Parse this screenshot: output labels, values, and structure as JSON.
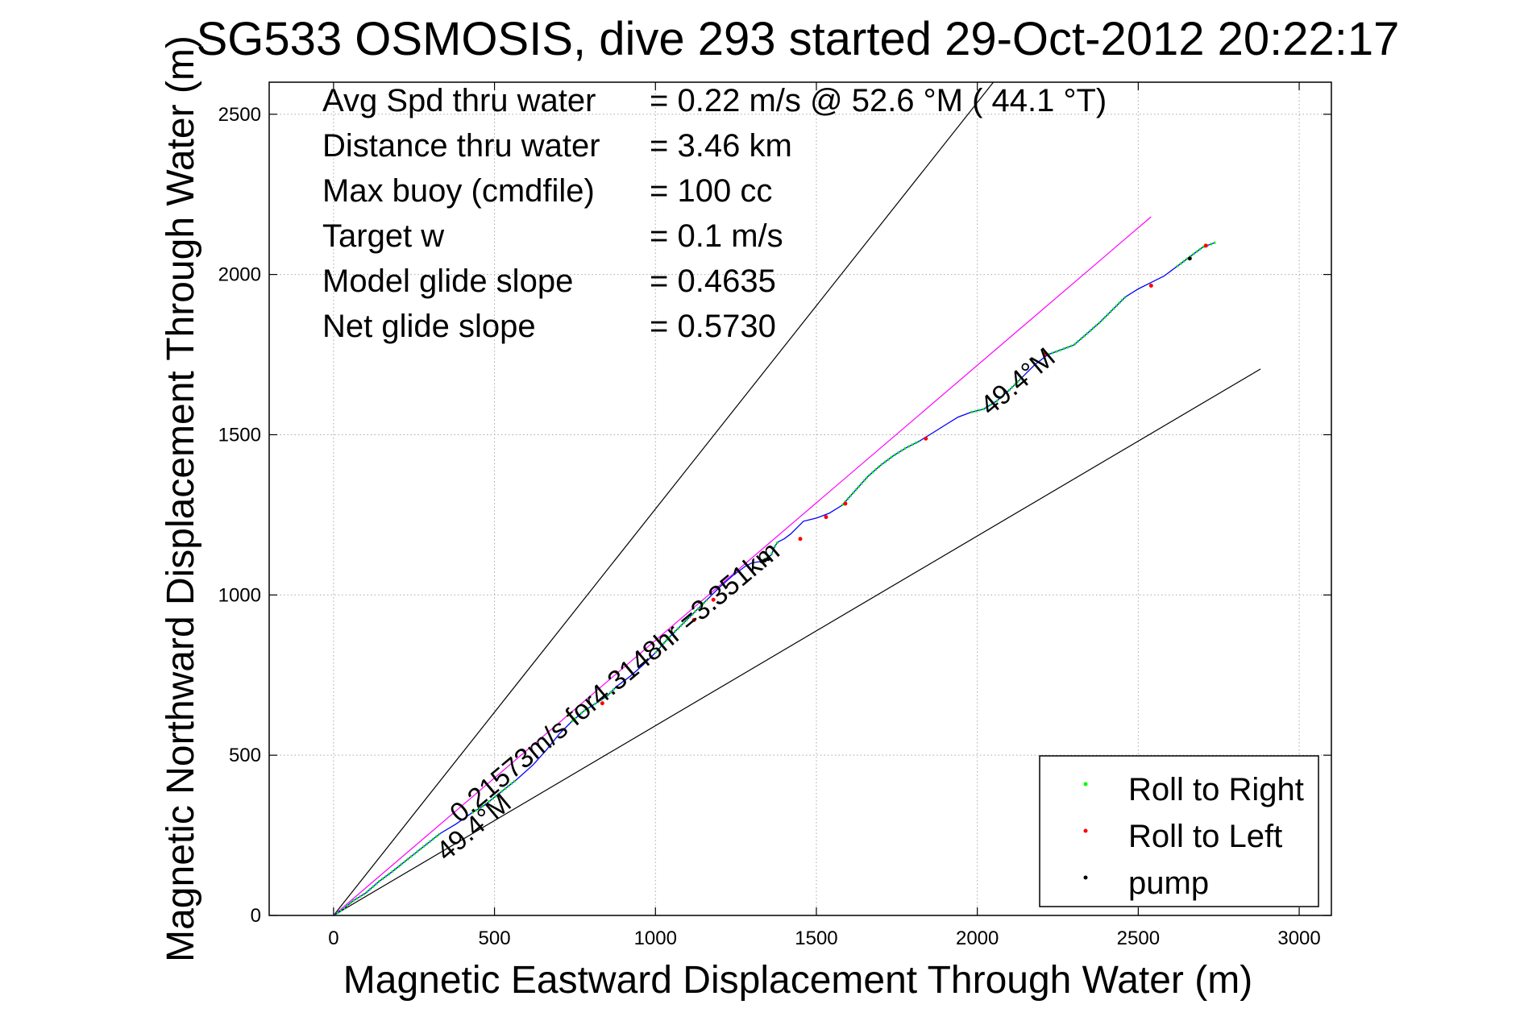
{
  "chart_data": {
    "type": "line",
    "title": "SG533 OSMOSIS, dive 293 started 29-Oct-2012 20:22:17",
    "xlabel": "Magnetic Eastward Displacement Through Water (m)",
    "ylabel": "Magnetic Northward Displacement Through Water (m)",
    "xlim": [
      -200,
      3100
    ],
    "ylim": [
      0,
      2600
    ],
    "xticks": [
      0,
      500,
      1000,
      1500,
      2000,
      2500,
      3000
    ],
    "yticks": [
      0,
      500,
      1000,
      1500,
      2000,
      2500
    ],
    "grid": true,
    "stats": [
      {
        "label": "Avg Spd thru water",
        "value": "=  0.22 m/s @  52.6 °M ( 44.1 °T)"
      },
      {
        "label": "Distance thru water",
        "value": "=  3.46 km"
      },
      {
        "label": "Max buoy (cmdfile)",
        "value": "= 100 cc"
      },
      {
        "label": "Target w",
        "value": "= 0.1 m/s"
      },
      {
        "label": "Model glide slope",
        "value": "= 0.4635"
      },
      {
        "label": "Net glide slope",
        "value": "= 0.5730"
      }
    ],
    "annotations": {
      "speed_line": "0.21573m/s for4.3148hr =3.351km",
      "heading_upper": "49.4°M",
      "heading_lower": "49.4°M"
    },
    "legend": {
      "position": "bottom-right",
      "entries": [
        {
          "name": "Roll to Right",
          "color": "#00ff00"
        },
        {
          "name": "Roll to Left",
          "color": "#ff0000"
        },
        {
          "name": "pump",
          "color": "#000000"
        }
      ]
    },
    "series": [
      {
        "kind": "track",
        "color": "#0000ff",
        "x": [
          0,
          30,
          60,
          100,
          140,
          180,
          230,
          280,
          330,
          380,
          430,
          470,
          520,
          570,
          620,
          660,
          700,
          740,
          780,
          820,
          850,
          880,
          920,
          960,
          1000,
          1040,
          1080,
          1120,
          1160,
          1200,
          1240,
          1280,
          1300,
          1330,
          1360,
          1370,
          1380,
          1400,
          1420,
          1440,
          1460,
          1480,
          1500,
          1540,
          1580,
          1620,
          1660,
          1700,
          1740,
          1780,
          1820,
          1860,
          1900,
          1940,
          1980,
          2020,
          2060,
          2100,
          2140,
          2180,
          2220,
          2260,
          2300,
          2340,
          2380,
          2420,
          2460,
          2500,
          2540,
          2580,
          2620,
          2660,
          2700,
          2740
        ],
        "y": [
          0,
          20,
          45,
          70,
          105,
          135,
          175,
          215,
          255,
          285,
          320,
          345,
          385,
          425,
          470,
          515,
          565,
          605,
          640,
          665,
          685,
          715,
          745,
          780,
          820,
          865,
          905,
          945,
          985,
          1025,
          1060,
          1090,
          1100,
          1105,
          1125,
          1150,
          1165,
          1175,
          1190,
          1210,
          1230,
          1235,
          1240,
          1255,
          1280,
          1325,
          1370,
          1405,
          1435,
          1460,
          1480,
          1505,
          1530,
          1555,
          1570,
          1580,
          1605,
          1640,
          1680,
          1720,
          1750,
          1765,
          1780,
          1815,
          1850,
          1890,
          1930,
          1955,
          1975,
          1995,
          2025,
          2055,
          2085,
          2100
        ]
      },
      {
        "kind": "reference",
        "color": "#000000",
        "x": [
          0,
          2050
        ],
        "y": [
          0,
          2600
        ]
      },
      {
        "kind": "reference",
        "color": "#000000",
        "x": [
          0,
          2880
        ],
        "y": [
          0,
          1705
        ]
      },
      {
        "kind": "reference",
        "color": "#ff00ff",
        "x": [
          0,
          2540
        ],
        "y": [
          0,
          2180
        ]
      }
    ],
    "roll_right_segments": [
      [
        0,
        8
      ],
      [
        10,
        13
      ],
      [
        17,
        21
      ],
      [
        24,
        28
      ],
      [
        33,
        36
      ],
      [
        44,
        50
      ],
      [
        54,
        58
      ],
      [
        60,
        66
      ],
      [
        70,
        73
      ]
    ],
    "roll_left_points": [
      [
        835,
        662
      ],
      [
        1120,
        922
      ],
      [
        1180,
        985
      ],
      [
        1450,
        1175
      ],
      [
        1530,
        1243
      ],
      [
        1590,
        1285
      ],
      [
        1840,
        1488
      ],
      [
        2210,
        1752
      ],
      [
        2540,
        1965
      ],
      [
        2710,
        2090
      ]
    ],
    "pump_points": [
      [
        1330,
        1105
      ],
      [
        1340,
        1108
      ],
      [
        1350,
        1112
      ],
      [
        2660,
        2050
      ]
    ]
  }
}
